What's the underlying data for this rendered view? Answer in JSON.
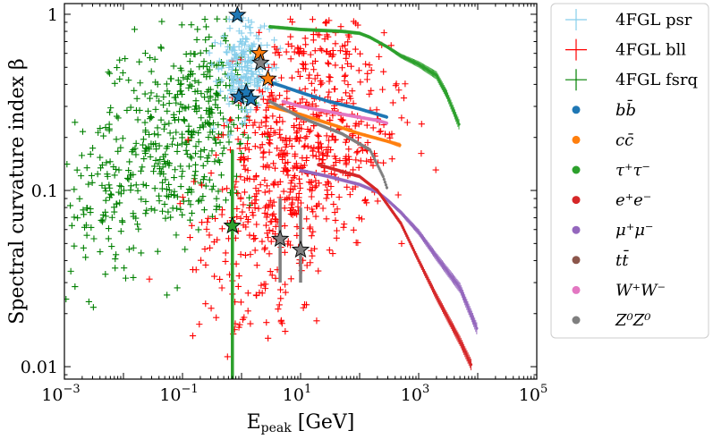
{
  "chart_data": {
    "type": "scatter",
    "xscale": "log",
    "yscale": "log",
    "xlim": [
      0.001,
      100000
    ],
    "ylim": [
      0.0085,
      1.15
    ],
    "xlabel_main": "E",
    "xlabel_sub": "peak",
    "xlabel_unit": " [GeV]",
    "ylabel": "Spectral curvature index β",
    "x_ticks": [
      {
        "value": 0.001,
        "base": "10",
        "exp": "−3"
      },
      {
        "value": 0.1,
        "base": "10",
        "exp": "−1"
      },
      {
        "value": 10,
        "base": "10",
        "exp": "1"
      },
      {
        "value": 1000,
        "base": "10",
        "exp": "3"
      },
      {
        "value": 100000,
        "base": "10",
        "exp": "5"
      }
    ],
    "y_ticks": [
      {
        "value": 0.01,
        "label": "0.01"
      },
      {
        "value": 0.1,
        "label": "0.1"
      },
      {
        "value": 1,
        "label": "1"
      }
    ],
    "colors": {
      "psr": "#87ceeb",
      "bll": "#ff0000",
      "fsrq": "#008000",
      "bb": "#1f77b4",
      "cc": "#ff7f0e",
      "tautau": "#2ca02c",
      "ee": "#d62728",
      "mumu": "#9467bd",
      "tt": "#8c564b",
      "WW": "#e377c2",
      "ZZ": "#7f7f7f"
    },
    "legend": {
      "position": "outside-right",
      "entries": [
        {
          "key": "psr",
          "label": "4FGL psr",
          "marker": "plus"
        },
        {
          "key": "bll",
          "label": "4FGL bll",
          "marker": "plus"
        },
        {
          "key": "fsrq",
          "label": "4FGL fsrq",
          "marker": "plus"
        },
        {
          "key": "bb",
          "label": "bb̄",
          "marker": "dot"
        },
        {
          "key": "cc",
          "label": "cc̄",
          "marker": "dot"
        },
        {
          "key": "tautau",
          "label": "τ⁺τ⁻",
          "marker": "dot"
        },
        {
          "key": "ee",
          "label": "e⁺e⁻",
          "marker": "dot"
        },
        {
          "key": "mumu",
          "label": "μ⁺μ⁻",
          "marker": "dot"
        },
        {
          "key": "tt",
          "label": "tt̄",
          "marker": "dot"
        },
        {
          "key": "WW",
          "label": "W⁺W⁻",
          "marker": "dot"
        },
        {
          "key": "ZZ",
          "label": "Z⁰Z⁰",
          "marker": "dot"
        }
      ]
    },
    "scatter_clouds": [
      {
        "key": "fsrq",
        "n": 520,
        "seed": 11,
        "clusters": [
          {
            "w": 0.55,
            "lx": -1.1,
            "sx": 0.55,
            "ly": -0.72,
            "sy": 0.28
          },
          {
            "w": 0.25,
            "lx": -2.3,
            "sx": 0.45,
            "ly": -1.05,
            "sy": 0.25
          },
          {
            "w": 0.2,
            "lx": -0.5,
            "sx": 0.3,
            "ly": -0.4,
            "sy": 0.2
          }
        ]
      },
      {
        "key": "bll",
        "n": 760,
        "seed": 23,
        "clusters": [
          {
            "w": 0.45,
            "lx": 0.7,
            "sx": 0.55,
            "ly": -0.95,
            "sy": 0.32
          },
          {
            "w": 0.3,
            "lx": 1.5,
            "sx": 0.6,
            "ly": -0.65,
            "sy": 0.25
          },
          {
            "w": 0.15,
            "lx": -0.2,
            "sx": 0.55,
            "ly": -1.3,
            "sy": 0.3
          },
          {
            "w": 0.1,
            "lx": 1.3,
            "sx": 0.5,
            "ly": -0.25,
            "sy": 0.15
          }
        ]
      },
      {
        "key": "psr",
        "n": 210,
        "seed": 37,
        "clusters": [
          {
            "w": 1.0,
            "lx": 0.05,
            "sx": 0.22,
            "ly": -0.3,
            "sy": 0.13
          }
        ]
      }
    ],
    "dm_curves": [
      {
        "key": "bb",
        "x": [
          2.5,
          5,
          10,
          30,
          100,
          300
        ],
        "y": [
          0.42,
          0.39,
          0.36,
          0.32,
          0.29,
          0.26
        ]
      },
      {
        "key": "cc",
        "x": [
          3,
          10,
          30,
          100,
          300,
          500
        ],
        "y": [
          0.3,
          0.27,
          0.24,
          0.21,
          0.19,
          0.18
        ]
      },
      {
        "key": "WW",
        "x": [
          5,
          10,
          30,
          100,
          200,
          300
        ],
        "y": [
          0.32,
          0.3,
          0.28,
          0.26,
          0.25,
          0.24
        ]
      },
      {
        "key": "ZZ",
        "x": [
          3,
          10,
          50,
          150,
          200,
          250,
          300
        ],
        "y": [
          0.32,
          0.26,
          0.21,
          0.17,
          0.14,
          0.12,
          0.1
        ]
      },
      {
        "key": "tautau",
        "x": [
          3,
          10,
          50,
          100,
          150,
          300,
          500,
          1000,
          2000,
          3000,
          5000
        ],
        "y": [
          0.85,
          0.82,
          0.8,
          0.78,
          0.74,
          0.65,
          0.58,
          0.52,
          0.45,
          0.35,
          0.23
        ]
      },
      {
        "key": "mumu",
        "x": [
          10,
          30,
          100,
          200,
          300,
          500,
          1000,
          2000,
          5000,
          10000
        ],
        "y": [
          0.13,
          0.12,
          0.108,
          0.098,
          0.088,
          0.075,
          0.058,
          0.042,
          0.028,
          0.016
        ]
      },
      {
        "key": "ee",
        "x": [
          20,
          100,
          200,
          500,
          1000,
          2000,
          5000,
          8000
        ],
        "y": [
          0.14,
          0.12,
          0.1,
          0.065,
          0.04,
          0.025,
          0.014,
          0.01
        ]
      }
    ],
    "star_markers": [
      {
        "key": "bb",
        "x": 0.85,
        "y": 0.99
      },
      {
        "key": "bb",
        "x": 0.9,
        "y": 0.34
      },
      {
        "key": "bb",
        "x": 1.2,
        "y": 0.36
      },
      {
        "key": "bb",
        "x": 1.45,
        "y": 0.33
      },
      {
        "key": "cc",
        "x": 2,
        "y": 0.6
      },
      {
        "key": "cc",
        "x": 2.8,
        "y": 0.43
      },
      {
        "key": "ZZ",
        "x": 2.1,
        "y": 0.53
      },
      {
        "key": "ZZ",
        "x": 4.5,
        "y": 0.053
      },
      {
        "key": "ZZ",
        "x": 10,
        "y": 0.046
      },
      {
        "key": "tautau",
        "x": 0.7,
        "y": 0.063
      }
    ],
    "error_bars": [
      {
        "key": "tautau",
        "x": 0.7,
        "y_low": 0.0085,
        "y_high": 0.17
      },
      {
        "key": "ZZ",
        "x": 4.5,
        "y_low": 0.03,
        "y_high": 0.09
      },
      {
        "key": "ZZ",
        "x": 10,
        "y_low": 0.03,
        "y_high": 0.08
      }
    ]
  }
}
